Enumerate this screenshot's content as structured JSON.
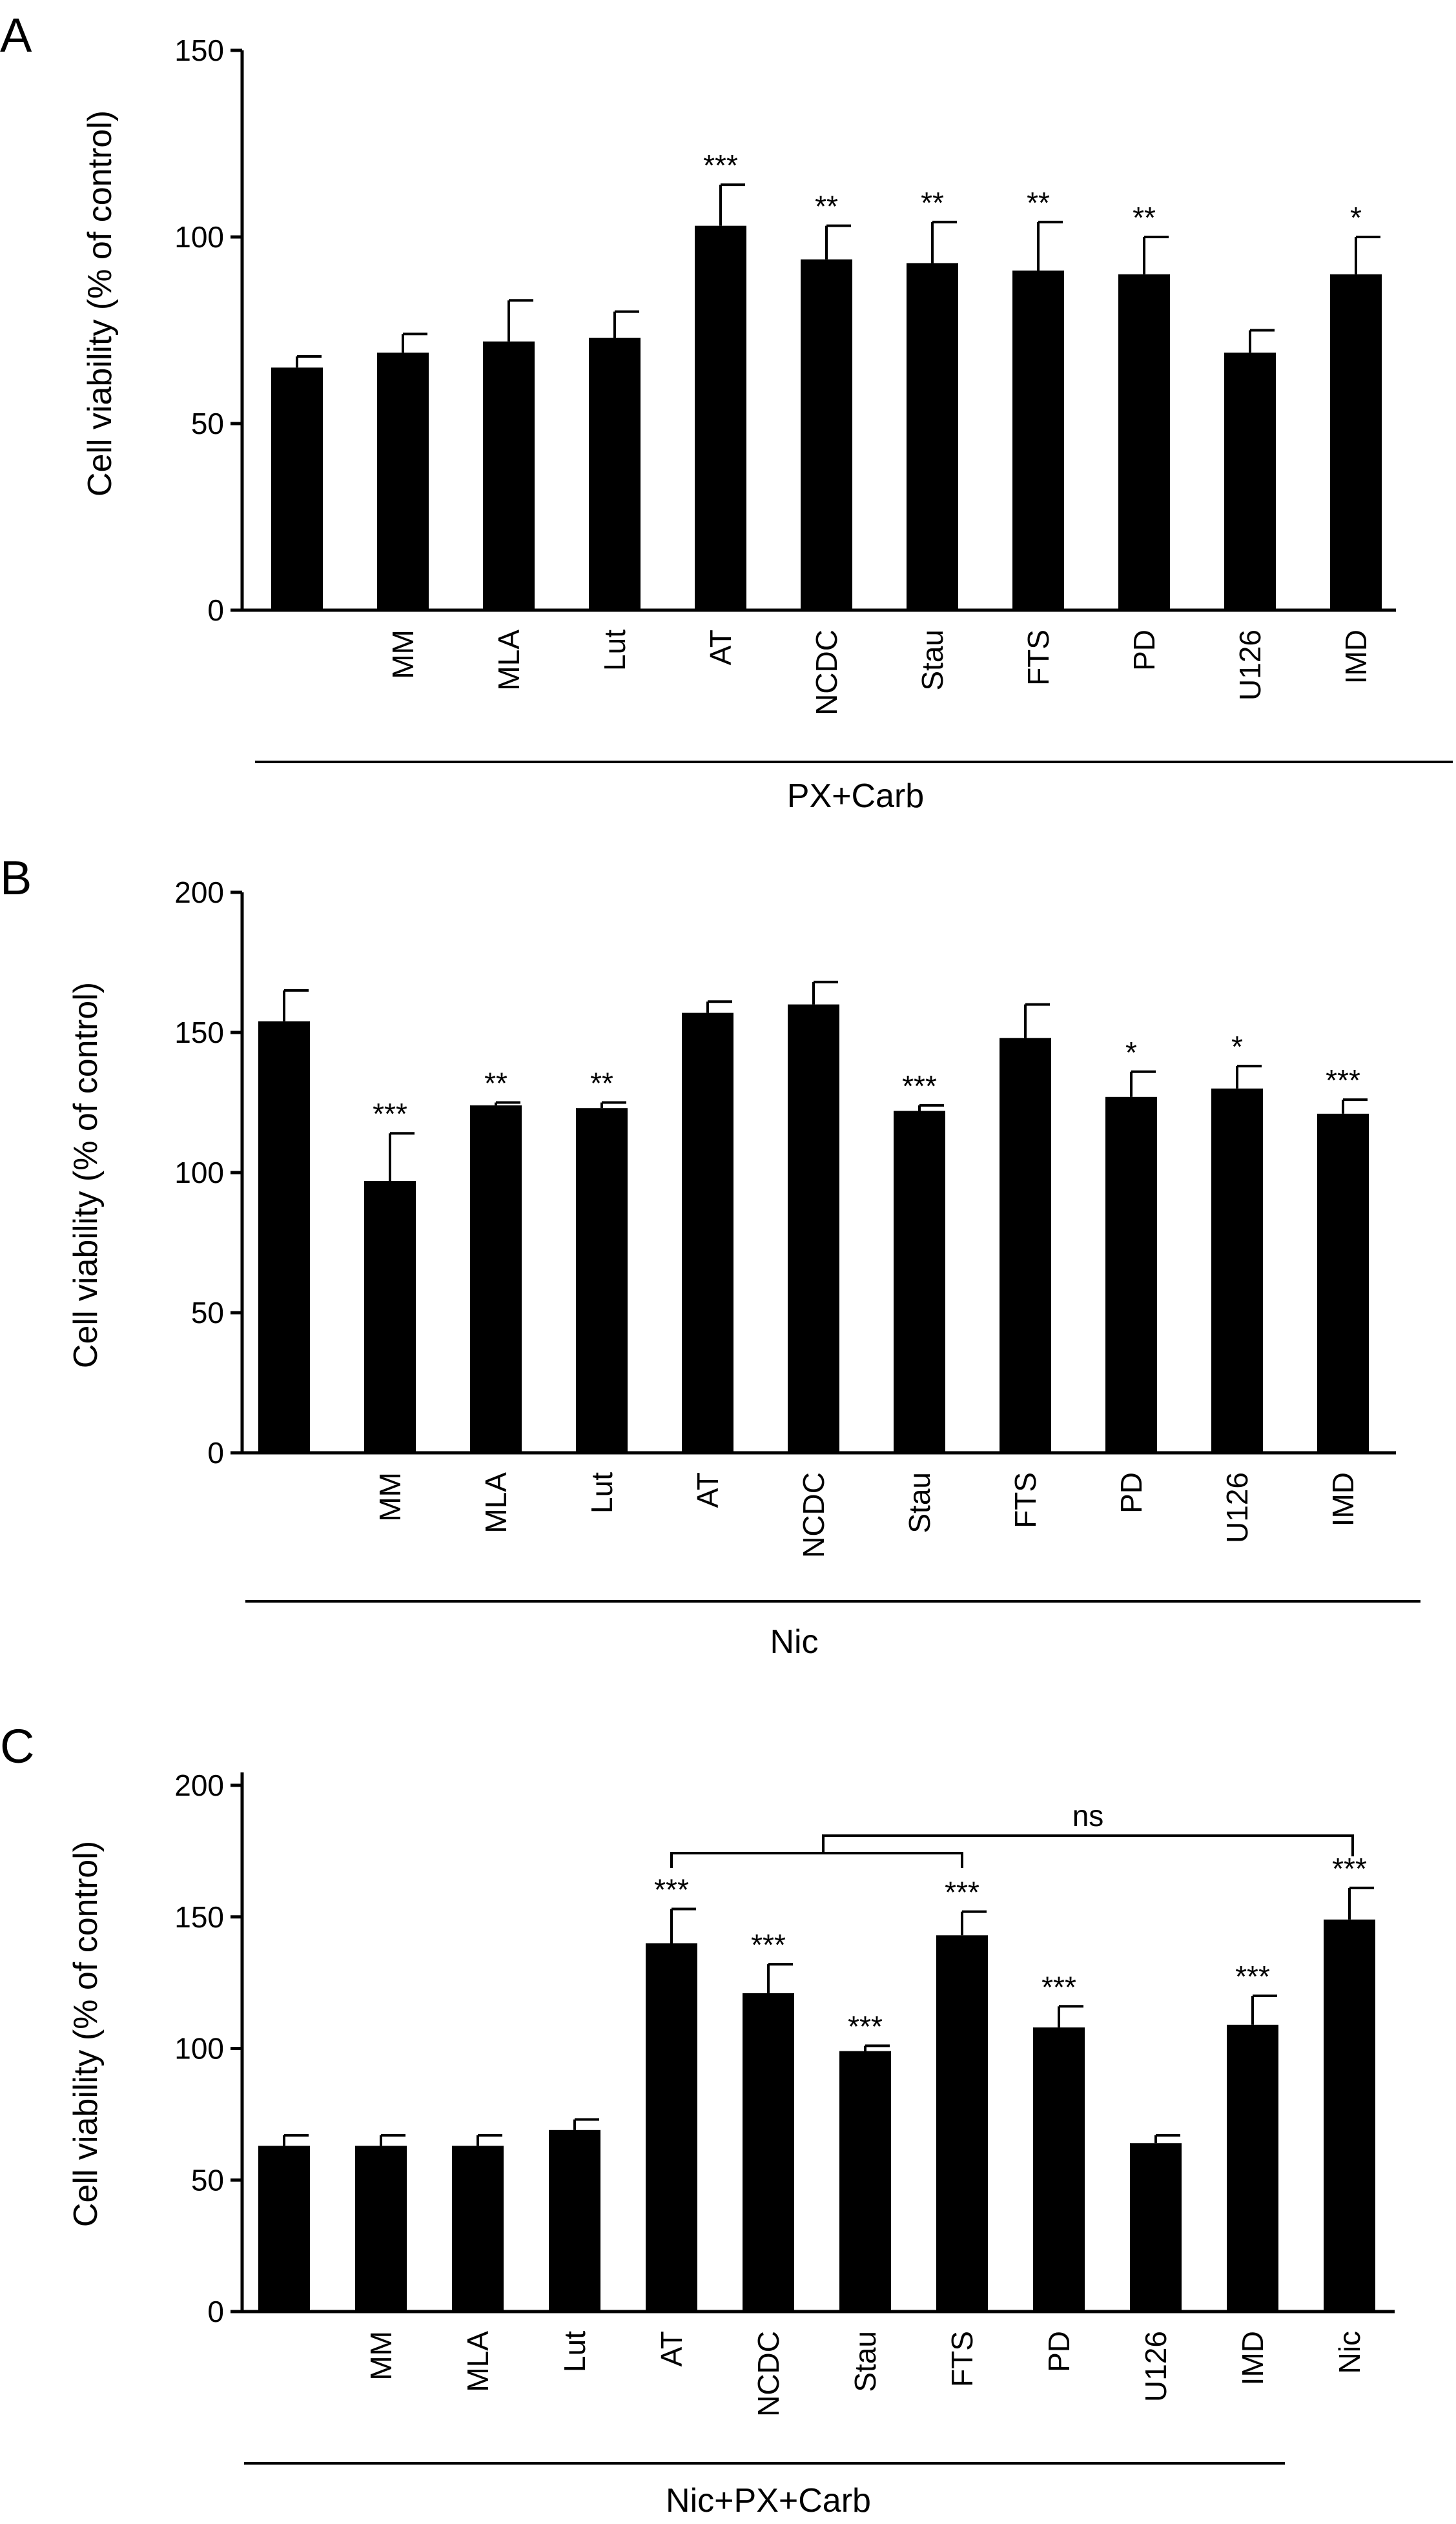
{
  "chart_data": [
    {
      "type": "bar",
      "panel": "A",
      "ylabel": "Cell viability  (% of control)",
      "ylim": [
        0,
        150
      ],
      "yticks": [
        0,
        50,
        100,
        150
      ],
      "categories": [
        "",
        "MM",
        "MLA",
        "Lut",
        "AT",
        "NCDC",
        "Stau",
        "FTS",
        "PD",
        "U126",
        "IMD"
      ],
      "values": [
        65,
        69,
        72,
        73,
        103,
        94,
        93,
        91,
        90,
        69,
        90
      ],
      "errors": [
        3,
        5,
        11,
        7,
        11,
        9,
        11,
        13,
        10,
        6,
        10
      ],
      "significance": [
        "",
        "",
        "",
        "",
        "***",
        "**",
        "**",
        "**",
        "**",
        "",
        "*"
      ],
      "group_label": "PX+Carb"
    },
    {
      "type": "bar",
      "panel": "B",
      "ylabel": "Cell viability  (% of control)",
      "ylim": [
        0,
        200
      ],
      "yticks": [
        0,
        50,
        100,
        150,
        200
      ],
      "categories": [
        "",
        "MM",
        "MLA",
        "Lut",
        "AT",
        "NCDC",
        "Stau",
        "FTS",
        "PD",
        "U126",
        "IMD"
      ],
      "values": [
        154,
        97,
        124,
        123,
        157,
        160,
        122,
        148,
        127,
        130,
        121
      ],
      "errors": [
        11,
        17,
        1,
        2,
        4,
        8,
        2,
        12,
        9,
        8,
        5
      ],
      "significance": [
        "",
        "***",
        "**",
        "**",
        "",
        "",
        "***",
        "",
        "*",
        "*",
        "***"
      ],
      "group_label": "Nic"
    },
    {
      "type": "bar",
      "panel": "C",
      "ylabel": "Cell viability  (% of control)",
      "ylim": [
        0,
        200
      ],
      "yticks": [
        0,
        50,
        100,
        150,
        200
      ],
      "categories": [
        "",
        "MM",
        "MLA",
        "Lut",
        "AT",
        "NCDC",
        "Stau",
        "FTS",
        "PD",
        "U126",
        "IMD",
        "Nic"
      ],
      "values": [
        63,
        63,
        63,
        69,
        140,
        121,
        99,
        143,
        108,
        64,
        109,
        149
      ],
      "errors": [
        4,
        4,
        4,
        4,
        13,
        11,
        2,
        9,
        8,
        3,
        11,
        12
      ],
      "significance": [
        "",
        "",
        "",
        "",
        "***",
        "***",
        "***",
        "***",
        "***",
        "",
        "***",
        "***"
      ],
      "group_label": "Nic+PX+Carb",
      "bracket_label": "ns"
    }
  ]
}
